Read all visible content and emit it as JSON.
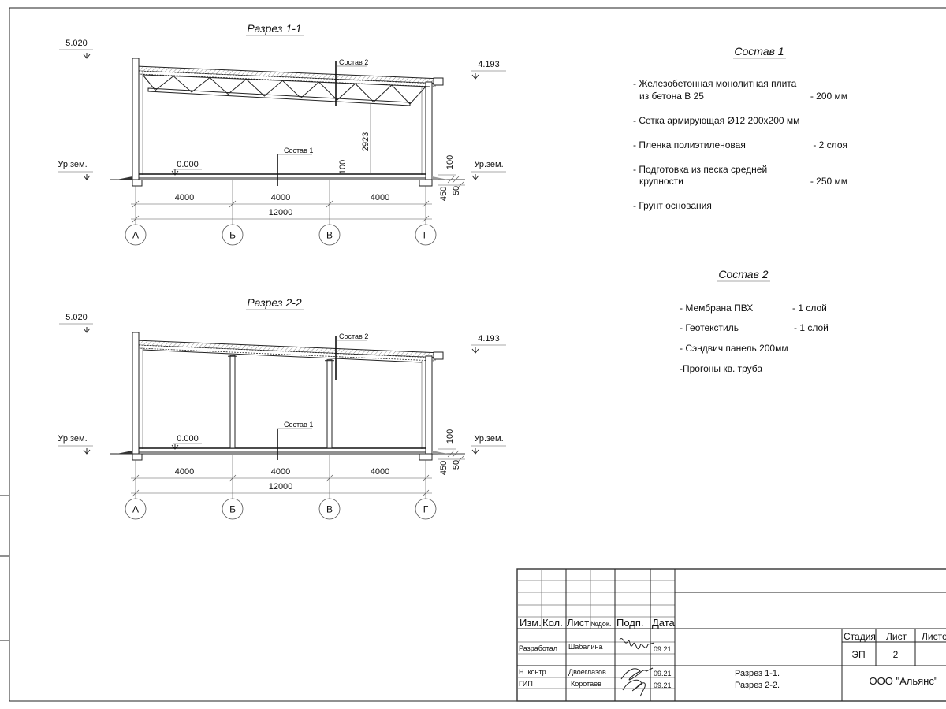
{
  "sections": [
    {
      "title": "Разрез 1-1",
      "level_top": "5.020",
      "level_eave": "4.193",
      "level_floor": "0.000",
      "ground_left": "Ур.зем.",
      "ground_right": "Ур.зем.",
      "comp_roof": "Состав 2",
      "comp_floor": "Состав 1",
      "dims": {
        "spans": [
          "4000",
          "4000",
          "4000"
        ],
        "total": "12000",
        "height": "2923",
        "slab": "100",
        "right_100": "100",
        "right_50": "50",
        "right_450": "450"
      },
      "axes": [
        "А",
        "Б",
        "В",
        "Г"
      ],
      "structure": "truss"
    },
    {
      "title": "Разрез 2-2",
      "level_top": "5.020",
      "level_eave": "4.193",
      "level_floor": "0.000",
      "ground_left": "Ур.зем.",
      "ground_right": "Ур.зем.",
      "comp_roof": "Состав 2",
      "comp_floor": "Состав 1",
      "dims": {
        "spans": [
          "4000",
          "4000",
          "4000"
        ],
        "total": "12000",
        "right_100": "100",
        "right_50": "50",
        "right_450": "450"
      },
      "axes": [
        "А",
        "Б",
        "В",
        "Г"
      ],
      "structure": "columns"
    }
  ],
  "composition1": {
    "title": "Состав 1",
    "items": [
      {
        "line1": "- Железобетонная  монолитная плита",
        "line2": "из бетона В 25",
        "value": "- 200 мм"
      },
      {
        "line1": "- Сетка армирующая Ø12 200x200 мм"
      },
      {
        "line1": "- Пленка полиэтиленовая",
        "value": "-  2 слоя"
      },
      {
        "line1": "- Подготовка из песка средней",
        "line2": "крупности",
        "value": "- 250 мм"
      },
      {
        "line1": "- Грунт основания"
      }
    ]
  },
  "composition2": {
    "title": "Состав 2",
    "items": [
      {
        "line1": "- Мембрана ПВХ",
        "value": "- 1 слой"
      },
      {
        "line1": "- Геотекстиль",
        "value": "- 1 слой"
      },
      {
        "line1": "- Сэндвич панель 200мм"
      },
      {
        "line1": "-Прогоны кв. труба"
      }
    ]
  },
  "title_block": {
    "headers": [
      "Изм.",
      "Кол.",
      "Лист",
      "№док.",
      "Подп.",
      "Дата"
    ],
    "rows": [
      {
        "role": "Разработал",
        "name": "Шабалина",
        "date": "09.21"
      },
      {
        "role": "Н. контр.",
        "name": "Двоеглазов",
        "date": "09.21"
      },
      {
        "role": "ГИП",
        "name": "Коротаев",
        "date": "09.21"
      }
    ],
    "sheet_titles": [
      "Разрез 1-1.",
      "Разрез 2-2."
    ],
    "stage_label": "Стадия",
    "sheet_label": "Лист",
    "sheets_label": "Листов",
    "stage": "ЭП",
    "sheet": "2",
    "company": "ООО \"Альянс\""
  }
}
